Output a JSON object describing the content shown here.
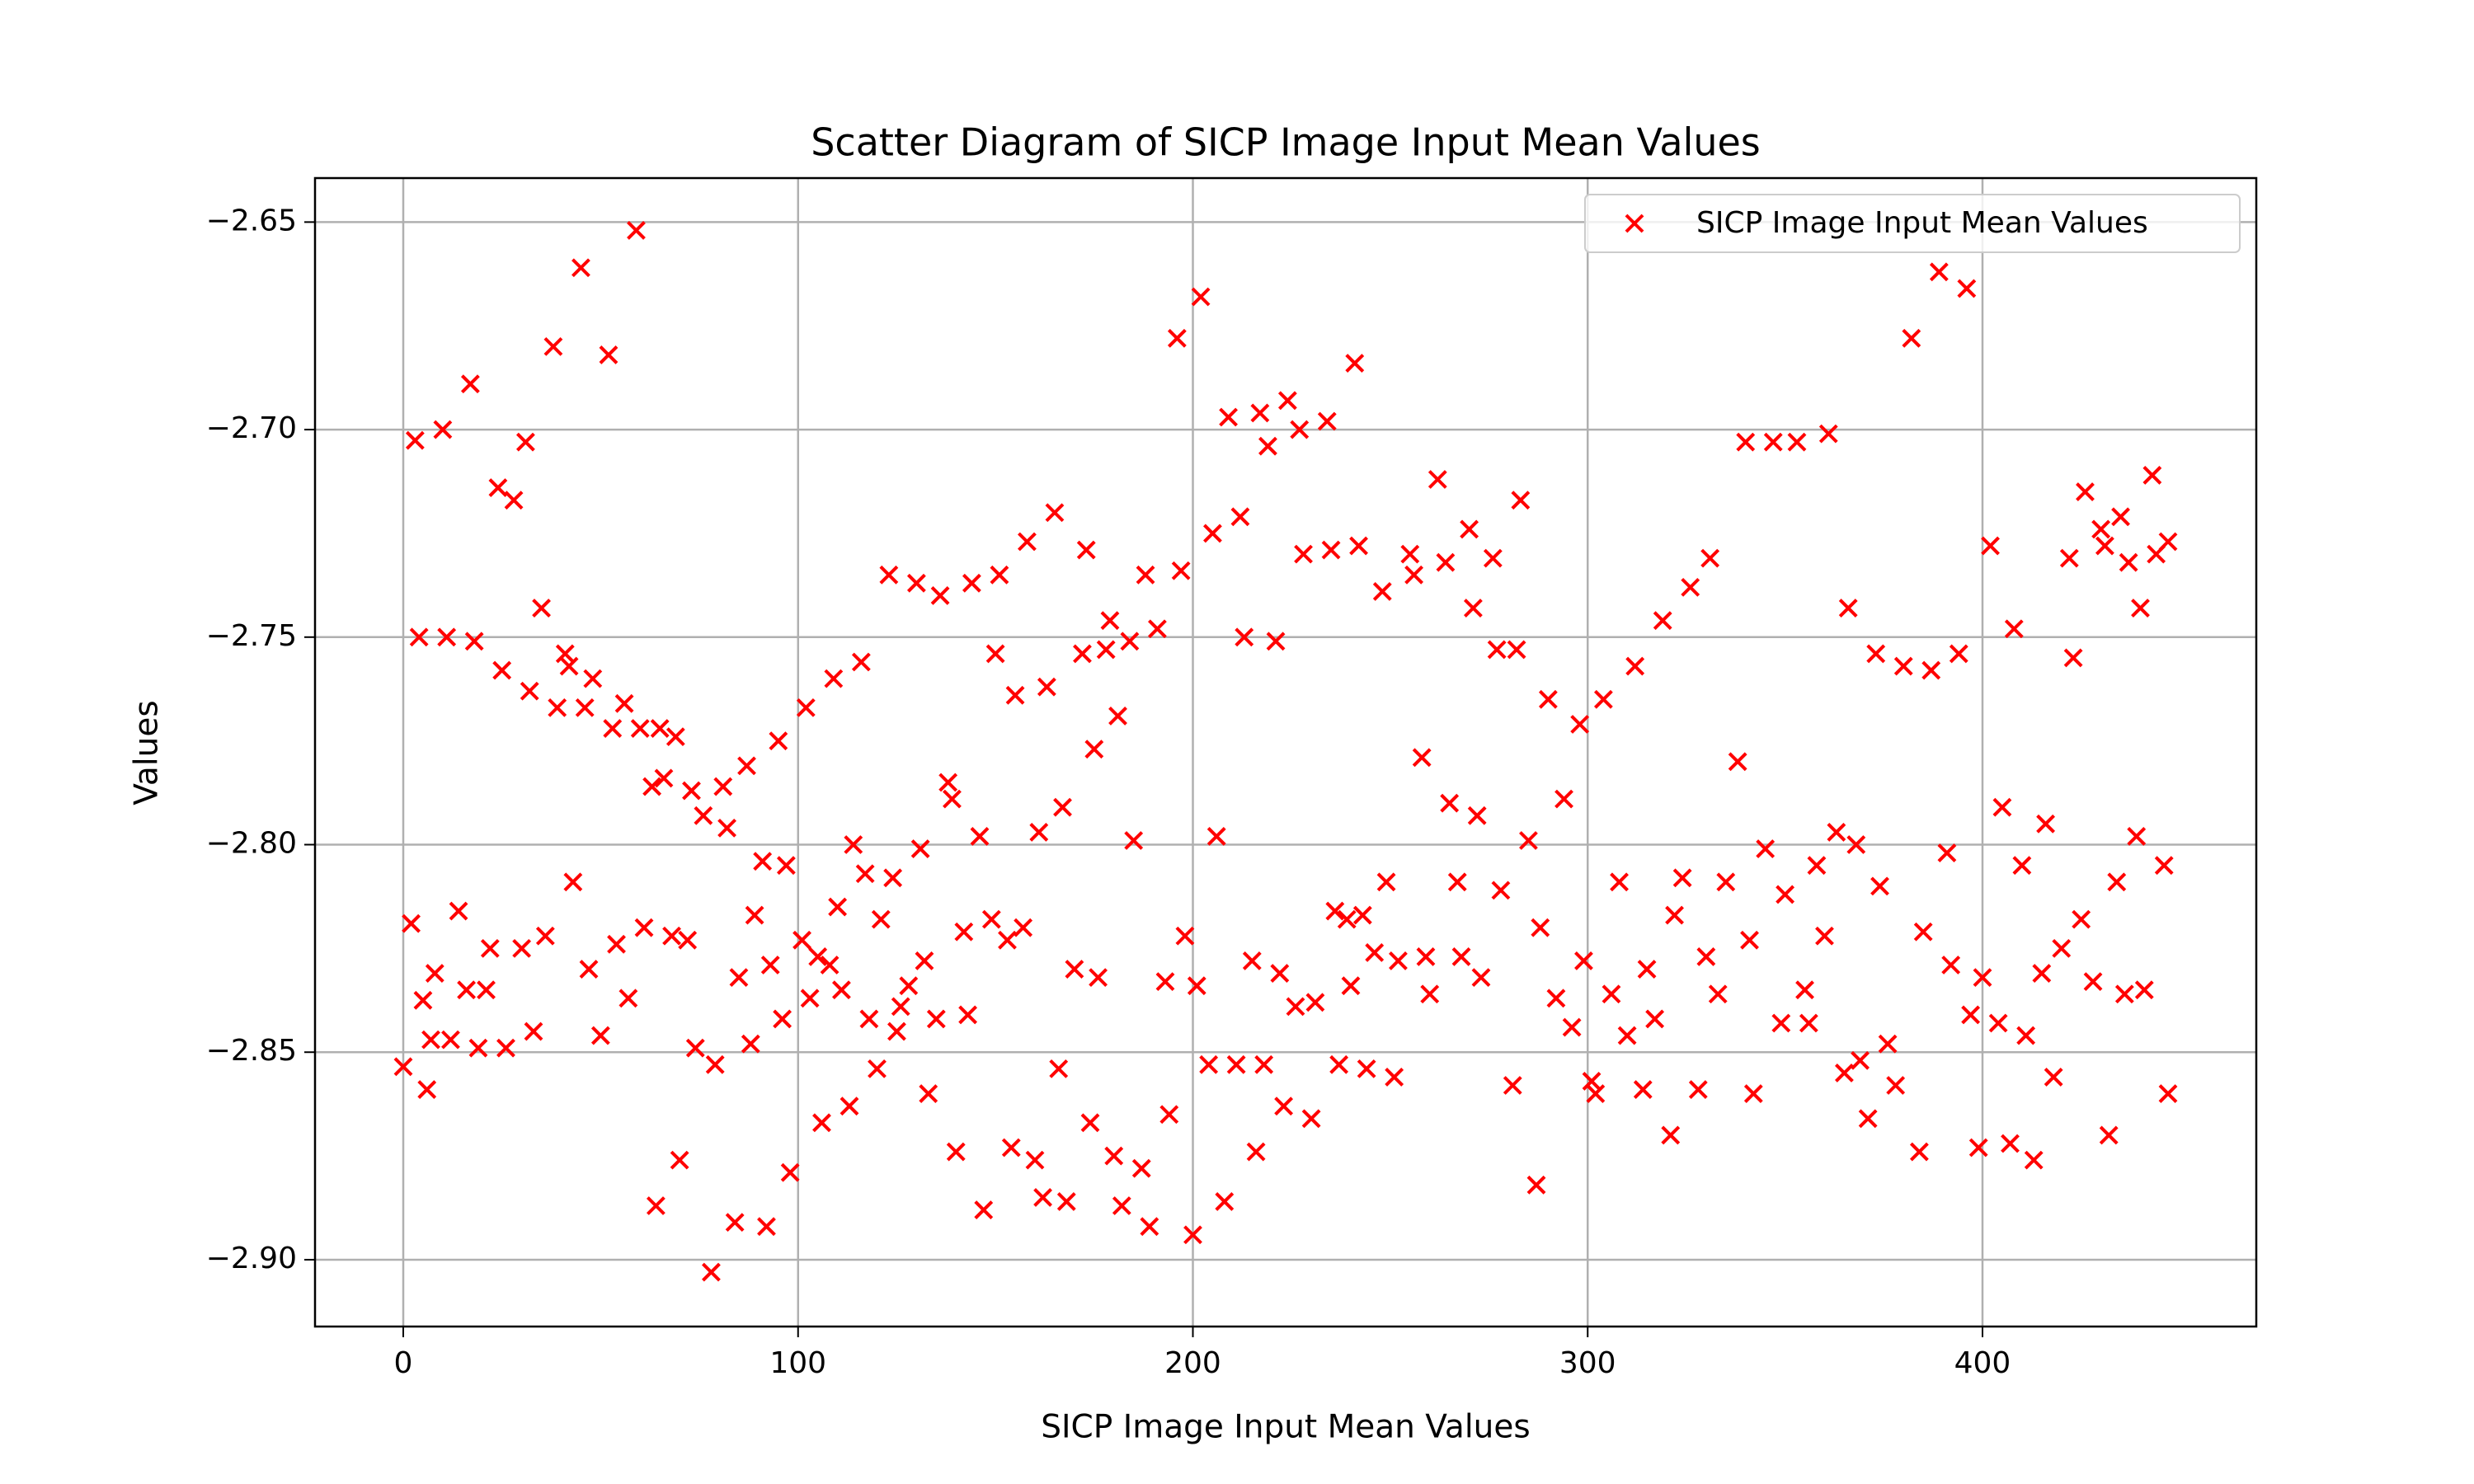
{
  "chart_data": {
    "type": "scatter",
    "title": "Scatter Diagram of SICP Image Input Mean Values",
    "xlabel": "SICP Image Input Mean Values",
    "ylabel": "Values",
    "x": [
      0,
      2,
      3,
      4,
      5,
      6,
      7,
      8,
      10,
      11,
      12,
      14,
      16,
      17,
      18,
      19,
      21,
      22,
      24,
      25,
      26,
      28,
      30,
      31,
      32,
      33,
      35,
      36,
      38,
      39,
      41,
      42,
      43,
      45,
      46,
      47,
      48,
      50,
      52,
      53,
      54,
      56,
      57,
      59,
      60,
      61,
      63,
      64,
      65,
      66,
      68,
      69,
      70,
      72,
      73,
      74,
      76,
      78,
      79,
      81,
      82,
      84,
      85,
      87,
      88,
      89,
      91,
      92,
      93,
      95,
      96,
      97,
      98,
      101,
      102,
      103,
      105,
      106,
      108,
      109,
      110,
      111,
      113,
      114,
      116,
      117,
      118,
      120,
      121,
      123,
      124,
      125,
      126,
      128,
      130,
      131,
      132,
      133,
      135,
      136,
      138,
      139,
      140,
      142,
      143,
      144,
      146,
      147,
      149,
      150,
      151,
      153,
      154,
      155,
      157,
      158,
      160,
      161,
      162,
      163,
      165,
      166,
      167,
      168,
      170,
      172,
      173,
      174,
      175,
      176,
      178,
      179,
      180,
      181,
      182,
      184,
      185,
      187,
      188,
      189,
      191,
      193,
      194,
      196,
      197,
      198,
      200,
      201,
      202,
      204,
      205,
      206,
      208,
      209,
      211,
      212,
      213,
      215,
      216,
      217,
      218,
      219,
      221,
      222,
      223,
      224,
      226,
      227,
      228,
      230,
      231,
      234,
      235,
      236,
      237,
      239,
      240,
      241,
      242,
      243,
      244,
      246,
      248,
      249,
      251,
      252,
      255,
      256,
      258,
      259,
      260,
      262,
      264,
      265,
      267,
      268,
      270,
      271,
      272,
      273,
      276,
      277,
      278,
      281,
      282,
      283,
      285,
      287,
      288,
      290,
      292,
      294,
      296,
      298,
      299,
      301,
      302,
      304,
      306,
      308,
      310,
      312,
      314,
      315,
      317,
      319,
      321,
      322,
      324,
      326,
      328,
      330,
      331,
      333,
      335,
      338,
      340,
      341,
      342,
      345,
      347,
      349,
      350,
      353,
      355,
      356,
      358,
      360,
      361,
      363,
      365,
      366,
      368,
      369,
      371,
      373,
      374,
      376,
      378,
      380,
      382,
      384,
      385,
      387,
      389,
      391,
      392,
      394,
      396,
      397,
      399,
      400,
      402,
      404,
      405,
      407,
      408,
      410,
      411,
      413,
      415,
      416,
      418,
      420,
      422,
      423,
      425,
      426,
      428,
      430,
      431,
      432,
      434,
      435,
      436,
      437,
      439,
      440,
      441,
      443,
      444,
      446,
      447,
      447
    ],
    "series": [
      {
        "name": "SICP Image Input Mean Values",
        "color": "#ff0000",
        "values": [
          -2.8535,
          -2.819,
          -2.7026,
          -2.75,
          -2.8375,
          -2.859,
          -2.847,
          -2.831,
          -2.7,
          -2.75,
          -2.847,
          -2.816,
          -2.835,
          -2.689,
          -2.751,
          -2.849,
          -2.835,
          -2.825,
          -2.714,
          -2.758,
          -2.849,
          -2.717,
          -2.825,
          -2.703,
          -2.763,
          -2.845,
          -2.743,
          -2.822,
          -2.68,
          -2.767,
          -2.754,
          -2.757,
          -2.809,
          -2.661,
          -2.767,
          -2.83,
          -2.76,
          -2.846,
          -2.682,
          -2.772,
          -2.824,
          -2.766,
          -2.837,
          -2.652,
          -2.772,
          -2.82,
          -2.786,
          -2.887,
          -2.772,
          -2.784,
          -2.822,
          -2.774,
          -2.876,
          -2.823,
          -2.787,
          -2.849,
          -2.793,
          -2.903,
          -2.853,
          -2.786,
          -2.796,
          -2.891,
          -2.832,
          -2.781,
          -2.848,
          -2.817,
          -2.804,
          -2.892,
          -2.829,
          -2.775,
          -2.842,
          -2.805,
          -2.879,
          -2.823,
          -2.767,
          -2.837,
          -2.827,
          -2.867,
          -2.829,
          -2.76,
          -2.815,
          -2.835,
          -2.863,
          -2.8,
          -2.756,
          -2.807,
          -2.842,
          -2.854,
          -2.818,
          -2.735,
          -2.808,
          -2.845,
          -2.839,
          -2.834,
          -2.737,
          -2.801,
          -2.828,
          -2.86,
          -2.842,
          -2.74,
          -2.785,
          -2.789,
          -2.874,
          -2.821,
          -2.841,
          -2.737,
          -2.798,
          -2.888,
          -2.818,
          -2.754,
          -2.735,
          -2.823,
          -2.873,
          -2.764,
          -2.82,
          -2.727,
          -2.876,
          -2.797,
          -2.885,
          -2.762,
          -2.72,
          -2.854,
          -2.791,
          -2.886,
          -2.83,
          -2.754,
          -2.729,
          -2.867,
          -2.777,
          -2.832,
          -2.753,
          -2.746,
          -2.875,
          -2.769,
          -2.887,
          -2.751,
          -2.799,
          -2.878,
          -2.735,
          -2.892,
          -2.748,
          -2.833,
          -2.865,
          -2.678,
          -2.734,
          -2.822,
          -2.894,
          -2.834,
          -2.668,
          -2.853,
          -2.725,
          -2.798,
          -2.886,
          -2.697,
          -2.853,
          -2.721,
          -2.75,
          -2.828,
          -2.874,
          -2.696,
          -2.853,
          -2.704,
          -2.751,
          -2.831,
          -2.863,
          -2.693,
          -2.839,
          -2.7,
          -2.73,
          -2.866,
          -2.838,
          -2.698,
          -2.729,
          -2.816,
          -2.853,
          -2.818,
          -2.834,
          -2.684,
          -2.728,
          -2.817,
          -2.854,
          -2.826,
          -2.739,
          -2.809,
          -2.856,
          -2.828,
          -2.73,
          -2.735,
          -2.779,
          -2.827,
          -2.836,
          -2.712,
          -2.732,
          -2.79,
          -2.809,
          -2.827,
          -2.724,
          -2.743,
          -2.793,
          -2.832,
          -2.731,
          -2.753,
          -2.811,
          -2.858,
          -2.753,
          -2.717,
          -2.799,
          -2.882,
          -2.82,
          -2.765,
          -2.837,
          -2.789,
          -2.844,
          -2.771,
          -2.828,
          -2.857,
          -2.86,
          -2.765,
          -2.836,
          -2.809,
          -2.846,
          -2.757,
          -2.859,
          -2.83,
          -2.842,
          -2.746,
          -2.87,
          -2.817,
          -2.808,
          -2.738,
          -2.859,
          -2.827,
          -2.731,
          -2.836,
          -2.809,
          -2.78,
          -2.703,
          -2.823,
          -2.86,
          -2.801,
          -2.703,
          -2.843,
          -2.812,
          -2.703,
          -2.835,
          -2.843,
          -2.805,
          -2.822,
          -2.701,
          -2.797,
          -2.855,
          -2.743,
          -2.8,
          -2.852,
          -2.866,
          -2.754,
          -2.81,
          -2.848,
          -2.858,
          -2.757,
          -2.678,
          -2.874,
          -2.821,
          -2.758,
          -2.662,
          -2.802,
          -2.829,
          -2.754,
          -2.666,
          -2.841,
          -2.873,
          -2.832,
          -2.728,
          -2.843,
          -2.791,
          -2.872,
          -2.748,
          -2.805,
          -2.846,
          -2.876,
          -2.831,
          -2.795,
          -2.856,
          -2.825,
          -2.731,
          -2.755,
          -2.818,
          -2.715,
          -2.833,
          -2.724,
          -2.728,
          -2.87,
          -2.809,
          -2.721,
          -2.836,
          -2.732,
          -2.798,
          -2.743,
          -2.835,
          -2.711,
          -2.73,
          -2.805,
          -2.86,
          -2.727
        ]
      }
    ],
    "xlim": [
      -22.35,
      469.35
    ],
    "ylim": [
      -2.9161,
      -2.6394
    ],
    "xticks": [
      0,
      100,
      200,
      300,
      400
    ],
    "yticks": [
      {
        "value": -2.65,
        "label": "−2.65"
      },
      {
        "value": -2.7,
        "label": "−2.70"
      },
      {
        "value": -2.75,
        "label": "−2.75"
      },
      {
        "value": -2.8,
        "label": "−2.80"
      },
      {
        "value": -2.85,
        "label": "−2.85"
      },
      {
        "value": -2.9,
        "label": "−2.90"
      }
    ],
    "grid": true,
    "legend": "upper right"
  }
}
